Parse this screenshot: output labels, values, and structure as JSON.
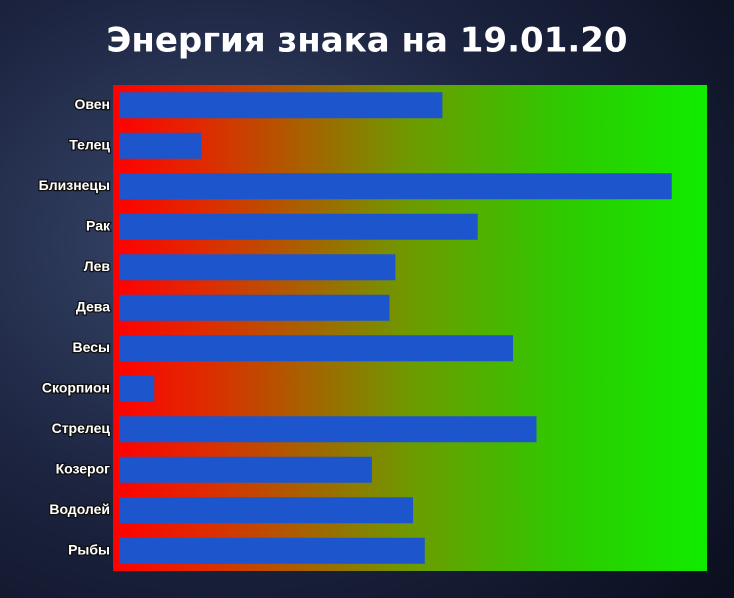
{
  "chart_data": {
    "type": "hbar",
    "title": "Энергия знака на 19.01.20",
    "categories": [
      "Овен",
      "Телец",
      "Близнецы",
      "Рак",
      "Лев",
      "Дева",
      "Весы",
      "Скорпион",
      "Стрелец",
      "Козерог",
      "Водолей",
      "Рыбы"
    ],
    "values": [
      55,
      14,
      94,
      61,
      47,
      46,
      67,
      6,
      71,
      43,
      50,
      52
    ],
    "color": "#1d55cc",
    "xlim": [
      0,
      100
    ]
  }
}
